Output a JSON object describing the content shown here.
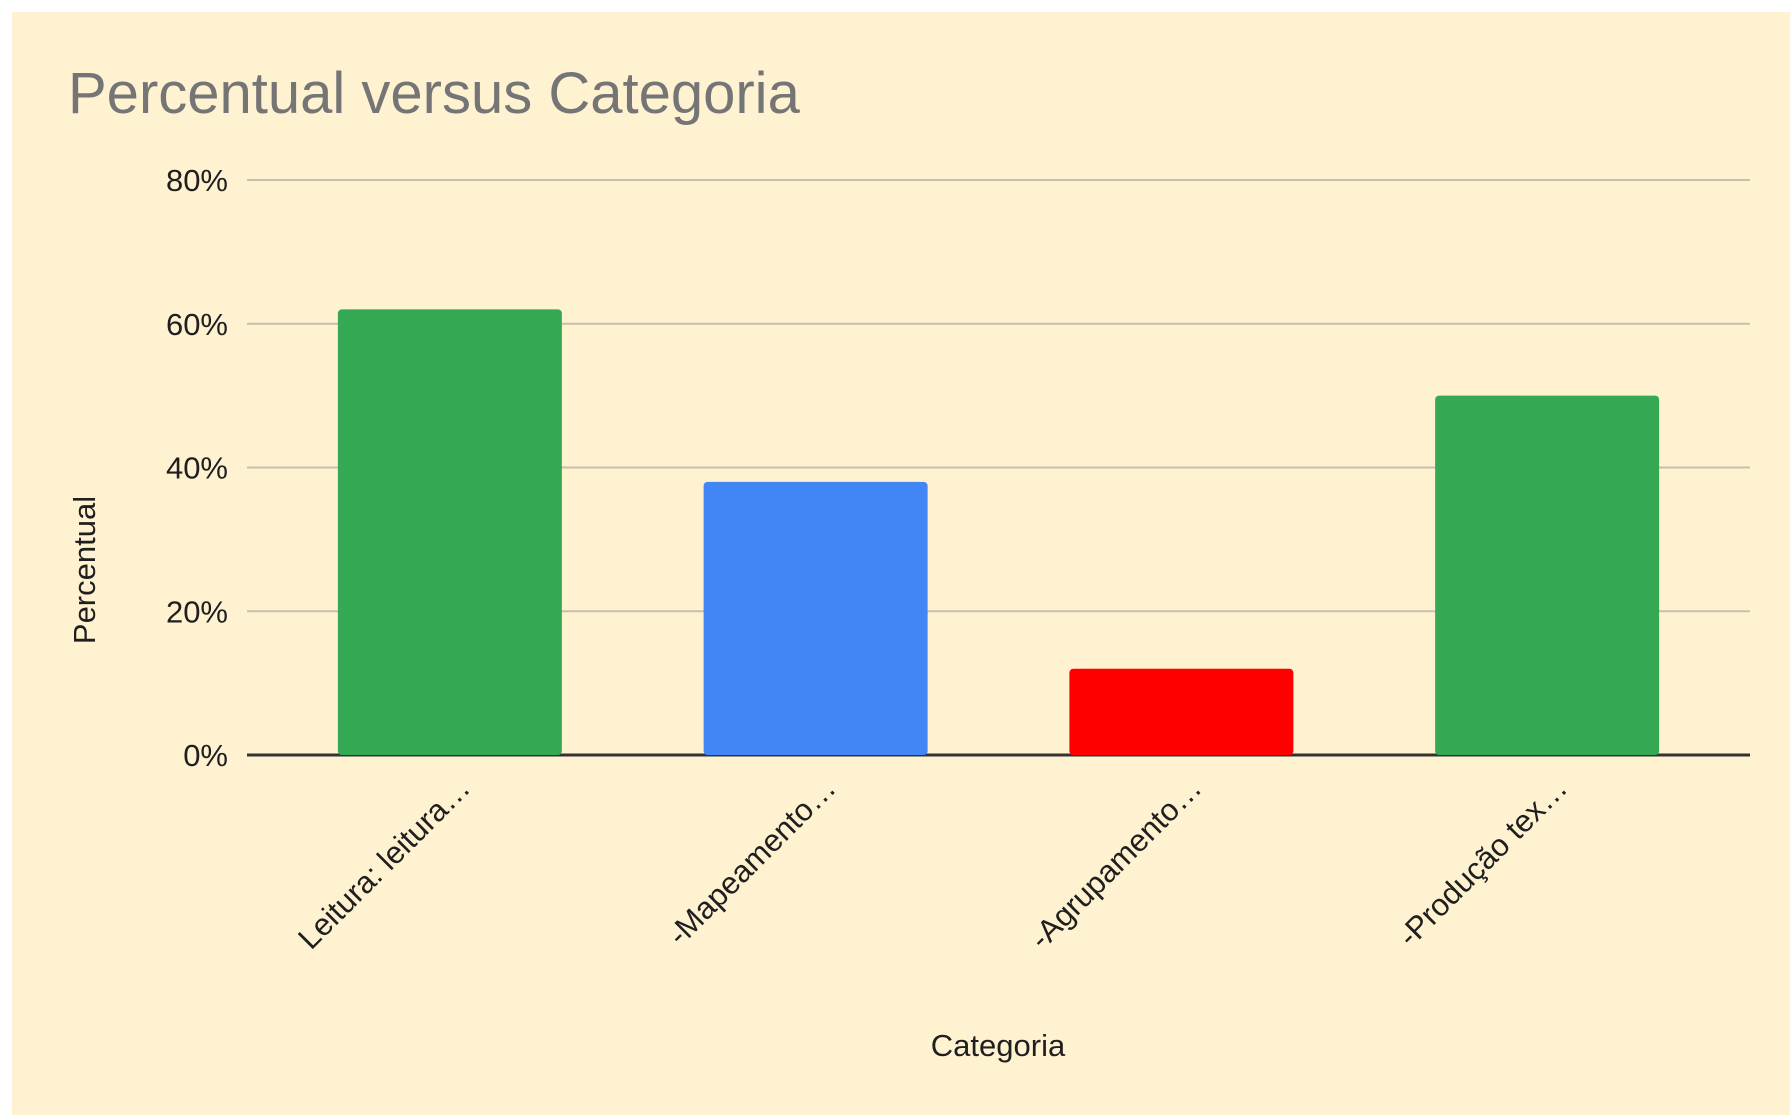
{
  "chart_data": {
    "type": "bar",
    "title": "Percentual versus Categoria",
    "xlabel": "Categoria",
    "ylabel": "Percentual",
    "categories": [
      "Leitura: leitura…",
      "-Mapeamento…",
      "-Agrupamento…",
      "-Produção tex…"
    ],
    "values": [
      62,
      38,
      12,
      50
    ],
    "colors": [
      "#34a853",
      "#4285f4",
      "#ff0000",
      "#34a853"
    ],
    "ylim": [
      0,
      80
    ],
    "yticks": [
      0,
      20,
      40,
      60,
      80
    ],
    "ytick_labels": [
      "0%",
      "20%",
      "40%",
      "60%",
      "80%"
    ],
    "grid": true,
    "legend": "none",
    "background": "#fff2d1",
    "gridline_color": "#c8c0aa",
    "baseline_color": "#333333"
  }
}
